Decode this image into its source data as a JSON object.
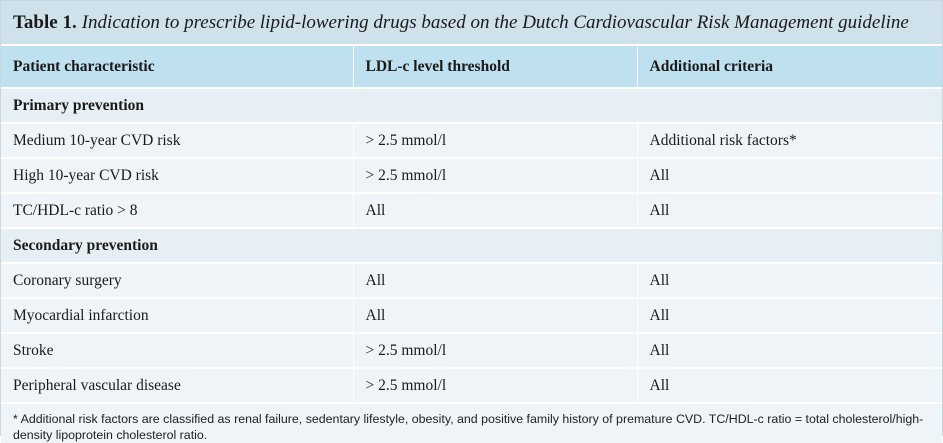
{
  "table": {
    "number_label": "Table 1.",
    "caption": "Indication to prescribe lipid-lowering drugs based on the Dutch Cardiovascular Risk Management guideline",
    "headers": [
      "Patient characteristic",
      "LDL-c level threshold",
      "Additional criteria"
    ],
    "sections": [
      {
        "title": "Primary prevention",
        "rows": [
          [
            "Medium 10-year CVD risk",
            "> 2.5 mmol/l",
            "Additional risk factors*"
          ],
          [
            "High 10-year CVD risk",
            "> 2.5 mmol/l",
            "All"
          ],
          [
            "TC/HDL-c ratio > 8",
            "All",
            "All"
          ]
        ]
      },
      {
        "title": "Secondary prevention",
        "rows": [
          [
            "Coronary surgery",
            "All",
            "All"
          ],
          [
            "Myocardial infarction",
            "All",
            "All"
          ],
          [
            "Stroke",
            "> 2.5 mmol/l",
            "All"
          ],
          [
            "Peripheral vascular disease",
            "> 2.5 mmol/l",
            "All"
          ]
        ]
      }
    ],
    "footnote": "* Additional risk factors are classified as renal failure, sedentary lifestyle, obesity, and positive family history of premature CVD. TC/HDL-c ratio = total cholesterol/high-density lipoprotein cholesterol ratio."
  }
}
